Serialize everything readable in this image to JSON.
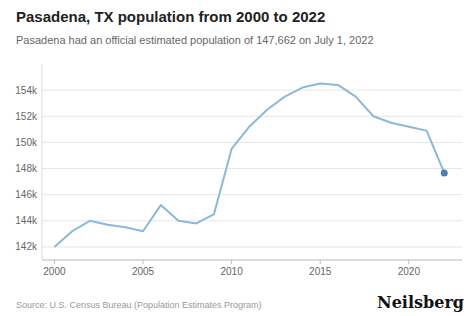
{
  "chart_data": {
    "type": "line",
    "title": "Pasadena, TX population from 2000 to 2022",
    "subtitle": "Pasadena had an official estimated population of 147,662 on July 1, 2022",
    "annotations": [
      "Source: U.S. Census Bureau (Population Estimates Program)",
      "Neilsberg"
    ],
    "x": [
      2000,
      2001,
      2002,
      2003,
      2004,
      2005,
      2006,
      2007,
      2008,
      2009,
      2010,
      2011,
      2012,
      2013,
      2014,
      2015,
      2016,
      2017,
      2018,
      2019,
      2020,
      2021,
      2022
    ],
    "series": [
      {
        "type": "line",
        "color": "#8ab9d9",
        "values": [
          142000,
          143200,
          144000,
          143700,
          143500,
          143200,
          145200,
          144000,
          143800,
          144500,
          149500,
          151200,
          152500,
          153500,
          154200,
          154500,
          154400,
          153500,
          152000,
          151500,
          151200,
          150900,
          147662
        ]
      },
      {
        "type": "scatter",
        "color": "#4a7fb5",
        "values": [
          null,
          null,
          null,
          null,
          null,
          null,
          null,
          null,
          null,
          null,
          null,
          null,
          null,
          null,
          null,
          null,
          null,
          null,
          null,
          null,
          null,
          null,
          147662
        ]
      }
    ],
    "xlim": [
      1999.3,
      2023.0
    ],
    "xticks": [
      2000,
      2005,
      2010,
      2015,
      2020
    ],
    "ylim": [
      141000,
      156000
    ],
    "yticks": [
      {
        "value": 142000,
        "label": "142k"
      },
      {
        "value": 144000,
        "label": "144k"
      },
      {
        "value": 146000,
        "label": "146k"
      },
      {
        "value": 148000,
        "label": "148k"
      },
      {
        "value": 150000,
        "label": "150k"
      },
      {
        "value": 152000,
        "label": "152k"
      },
      {
        "value": 154000,
        "label": "154k"
      }
    ],
    "grid": true
  }
}
